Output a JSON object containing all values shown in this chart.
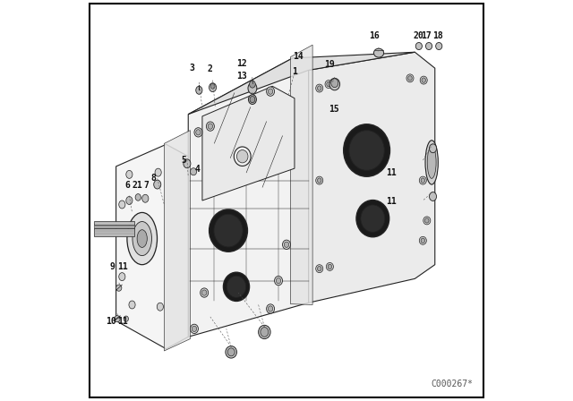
{
  "background_color": "#ffffff",
  "border_color": "#000000",
  "watermark": "C000267*",
  "diagram_lines_color": "#222222",
  "text_color": "#111111",
  "font_size_labels": 7,
  "font_size_watermark": 7,
  "border_width": 1.5
}
